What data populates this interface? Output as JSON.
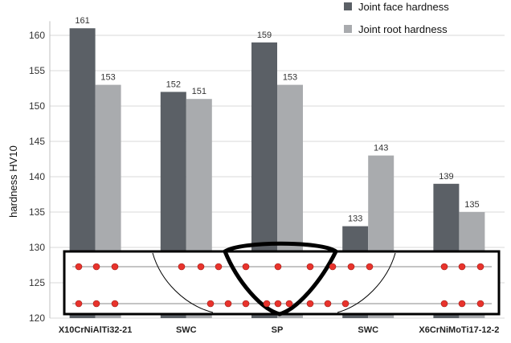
{
  "chart_data": {
    "type": "bar",
    "title": "",
    "xlabel": "",
    "ylabel": "hardness HV10",
    "ylim": [
      120,
      162
    ],
    "yticks": [
      120,
      125,
      130,
      135,
      140,
      145,
      150,
      155,
      160
    ],
    "categories": [
      "X10CrNiAlTi32-21",
      "SWC",
      "SP",
      "SWC",
      "X6CrNiMoTi17-12-2"
    ],
    "series": [
      {
        "name": "Joint face hardness",
        "color": "#5b6066",
        "values": [
          161,
          152,
          159,
          133,
          139
        ]
      },
      {
        "name": "Joint root hardness",
        "color": "#a9abae",
        "values": [
          153,
          151,
          153,
          143,
          135
        ]
      }
    ],
    "legend": {
      "placement": "top-right"
    },
    "grid": true,
    "inset": {
      "description_free": true,
      "point_color": "#e8332c",
      "outline_color": "#000000"
    }
  }
}
